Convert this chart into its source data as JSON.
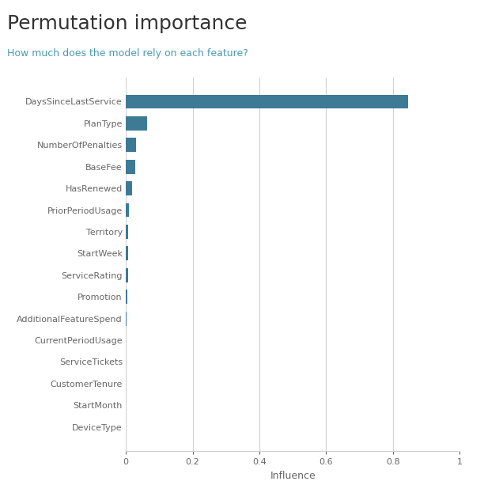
{
  "title": "Permutation importance",
  "subtitle": "How much does the model rely on each feature?",
  "title_color": "#333333",
  "subtitle_color": "#4a9ab5",
  "xlabel": "Influence",
  "features": [
    "DaysSinceLastService",
    "PlanType",
    "NumberOfPenalties",
    "BaseFee",
    "HasRenewed",
    "PriorPeriodUsage",
    "Territory",
    "StartWeek",
    "ServiceRating",
    "Promotion",
    "AdditionalFeatureSpend",
    "CurrentPeriodUsage",
    "ServiceTickets",
    "CustomerTenure",
    "StartMonth",
    "DeviceType"
  ],
  "values": [
    0.845,
    0.063,
    0.03,
    0.028,
    0.018,
    0.01,
    0.008,
    0.007,
    0.006,
    0.004,
    0.003,
    0.0,
    0.0,
    0.0,
    0.0,
    0.0
  ],
  "bar_color": "#3d7a96",
  "background_color": "#ffffff",
  "xlim": [
    0,
    1.0
  ],
  "xticks": [
    0,
    0.2,
    0.4,
    0.6,
    0.8,
    1.0
  ],
  "xtick_labels": [
    "0",
    "0.2",
    "0.4",
    "0.6",
    "0.8",
    "1"
  ],
  "grid_color": "#d0d0d0",
  "bar_height": 0.65,
  "figsize": [
    6.12,
    6.13
  ],
  "dpi": 100,
  "title_fontsize": 18,
  "subtitle_fontsize": 9,
  "ytick_fontsize": 8,
  "xtick_fontsize": 8,
  "xlabel_fontsize": 9
}
